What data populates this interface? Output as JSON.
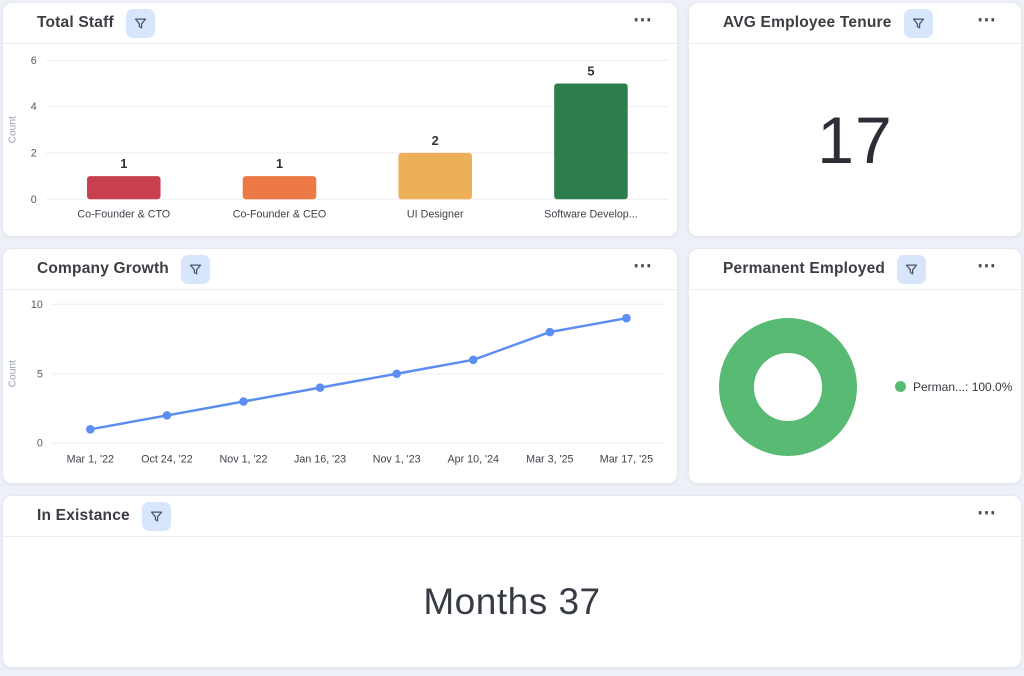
{
  "colors": {
    "page_bg": "#eef0f8",
    "card_bg": "#ffffff",
    "card_border": "#e7e9f2",
    "filter_chip_bg": "#d8e6fc",
    "title_text": "#3c3c43",
    "grid_line": "#ededf2",
    "donut_green": "#58ba73",
    "line_blue": "#5b8df2"
  },
  "icons": {
    "filter": "funnel-icon",
    "menu": "⋯"
  },
  "cards": {
    "total_staff": {
      "title": "Total Staff"
    },
    "avg_tenure": {
      "title": "AVG Employee Tenure",
      "value": "17"
    },
    "company_growth": {
      "title": "Company Growth"
    },
    "permanent_employed": {
      "title": "Permanent Employed"
    },
    "in_existance": {
      "title": "In Existance",
      "value": "Months 37"
    }
  },
  "chart_data": [
    {
      "id": "total-staff-bar",
      "type": "bar",
      "title": "Total Staff",
      "categories": [
        "Co-Founder & CTO",
        "Co-Founder & CEO",
        "UI Designer",
        "Software Develop..."
      ],
      "values": [
        1,
        1,
        2,
        5
      ],
      "bar_colors": [
        "#c8404f",
        "#ed7a46",
        "#edb058",
        "#2e7d4d"
      ],
      "xlabel": "",
      "ylabel": "Count",
      "ylim": [
        0,
        6
      ],
      "yticks": [
        0,
        2,
        4,
        6
      ],
      "grid": true,
      "data_labels": true,
      "legend_position": "none"
    },
    {
      "id": "company-growth-line",
      "type": "line",
      "title": "Company Growth",
      "x": [
        "Mar 1, '22",
        "Oct 24, '22",
        "Nov 1, '22",
        "Jan 16, '23",
        "Nov 1, '23",
        "Apr 10, '24",
        "Mar 3, '25",
        "Mar 17, '25"
      ],
      "values": [
        1,
        2,
        3,
        4,
        5,
        6,
        8,
        9
      ],
      "line_color": "#5b8df2",
      "marker": "circle",
      "xlabel": "",
      "ylabel": "Count",
      "ylim": [
        0,
        10
      ],
      "yticks": [
        0,
        5,
        10
      ],
      "grid": true,
      "legend_position": "none"
    },
    {
      "id": "permanent-donut",
      "type": "pie",
      "title": "Permanent Employed",
      "donut": true,
      "slices": [
        {
          "label": "Perman...",
          "value": 100.0,
          "color": "#58ba73",
          "legend": "Perman...: 100.0%"
        }
      ],
      "legend_position": "right"
    }
  ]
}
